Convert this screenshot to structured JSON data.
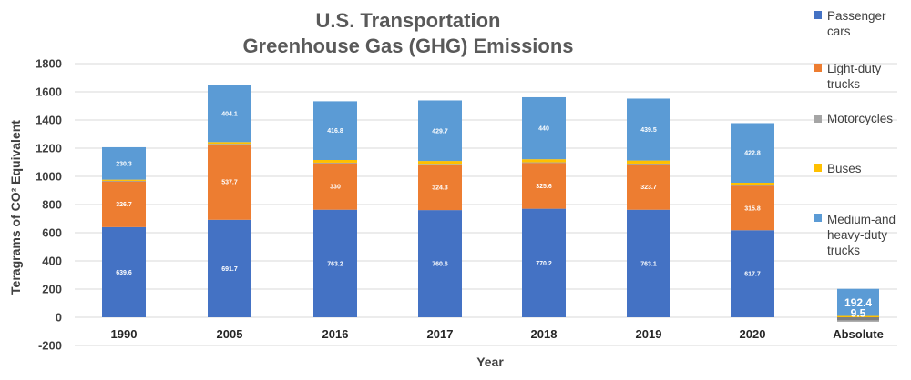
{
  "chart_data": {
    "type": "bar",
    "stacked": true,
    "title_lines": [
      "U.S. Transportation",
      "Greenhouse Gas (GHG) Emissions"
    ],
    "xlabel": "Year",
    "ylabel": "Teragrams of CO² Equivalent",
    "ylim": [
      -200,
      1800
    ],
    "yticks": [
      -200,
      0,
      200,
      400,
      600,
      800,
      1000,
      1200,
      1400,
      1600,
      1800
    ],
    "grid": true,
    "legend_position": "right",
    "categories": [
      "1990",
      "2005",
      "2016",
      "2017",
      "2018",
      "2019",
      "2020"
    ],
    "series": [
      {
        "name_lines": [
          "Passenger",
          "cars"
        ],
        "color": "#4472c4",
        "values": [
          639.6,
          691.7,
          763.2,
          760.6,
          770.2,
          763.1,
          617.7
        ]
      },
      {
        "name_lines": [
          "Light-duty",
          "trucks"
        ],
        "color": "#ed7d31",
        "values": [
          326.7,
          537.7,
          330,
          324.3,
          325.6,
          323.7,
          315.8
        ]
      },
      {
        "name_lines": [
          "Motorcycles"
        ],
        "color": "#a5a5a5",
        "values": [
          1.7,
          1.6,
          3.9,
          3.8,
          3.9,
          3.7,
          3.3
        ]
      },
      {
        "name_lines": [
          "Buses"
        ],
        "color": "#ffc000",
        "values": [
          8.5,
          12.3,
          19,
          20.5,
          21.8,
          21.7,
          18
        ]
      },
      {
        "name_lines": [
          "Medium-and",
          "heavy-duty",
          "trucks"
        ],
        "color": "#5b9bd5",
        "values": [
          230.3,
          404.1,
          416.8,
          429.7,
          440,
          439.5,
          422.8
        ]
      }
    ],
    "absolute": {
      "category": "Absolute",
      "segments": [
        {
          "value": -22,
          "color": "#7f7f7f"
        },
        {
          "value": -9.5,
          "color": "#a5a5a5"
        },
        {
          "value": 9.5,
          "color": "#ffc000",
          "label": "9.5"
        },
        {
          "value": 192.4,
          "color": "#5b9bd5",
          "label": "192.4"
        }
      ]
    }
  }
}
